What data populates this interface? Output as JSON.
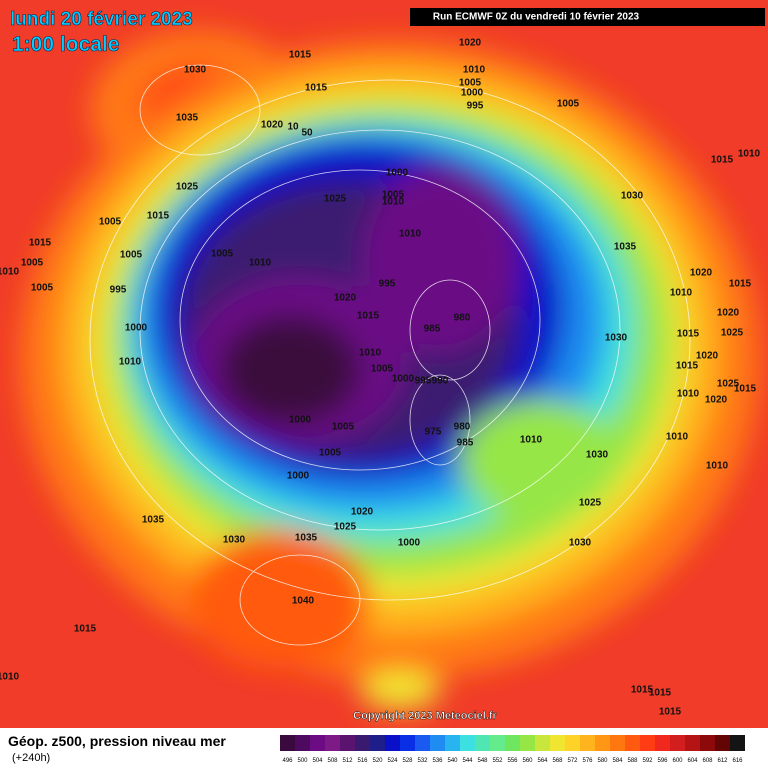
{
  "header": {
    "title": "lundi 20 février 2023",
    "subtitle": "1:00 locale",
    "run": "Run ECMWF 0Z du vendredi 10 février 2023"
  },
  "copyright": "Copyright 2023 Meteociel.fr",
  "footer": {
    "title": "Géop. z500, pression niveau mer",
    "lead": "(+240h)"
  },
  "isobar_labels": [
    "1030",
    "1035",
    "1025",
    "1020",
    "10",
    "50",
    "1015",
    "1015",
    "1020",
    "1010",
    "1005",
    "1000",
    "995",
    "1005",
    "1015",
    "1010",
    "1000",
    "1005",
    "1010",
    "1025",
    "1030",
    "1015",
    "1005",
    "1015",
    "1005",
    "1005",
    "1010",
    "1010",
    "1035",
    "1005",
    "1010",
    "1005",
    "995",
    "995",
    "1020",
    "1015",
    "985",
    "980",
    "1020",
    "1010",
    "1015",
    "1020",
    "1000",
    "1030",
    "1010",
    "1010",
    "1005",
    "1000",
    "995",
    "990",
    "1025",
    "1015",
    "1020",
    "1015",
    "1025",
    "1015",
    "1010",
    "1020",
    "1000",
    "1005",
    "975",
    "980",
    "985",
    "1010",
    "1010",
    "1030",
    "1005",
    "1010",
    "1000",
    "1025",
    "1020",
    "1035",
    "1025",
    "1030",
    "1035",
    "1000",
    "1030",
    "1040",
    "1015",
    "1010",
    "1015",
    "1015",
    "1015"
  ],
  "legend": {
    "levels": [
      "496",
      "500",
      "504",
      "508",
      "512",
      "516",
      "520",
      "524",
      "528",
      "532",
      "536",
      "540",
      "544",
      "548",
      "552",
      "556",
      "560",
      "564",
      "568",
      "572",
      "576",
      "580",
      "584",
      "588",
      "592",
      "596",
      "600",
      "604",
      "608",
      "612",
      "616"
    ],
    "colors": [
      "#3a0a3e",
      "#4e0a5e",
      "#6b0c85",
      "#7e1a86",
      "#5a1470",
      "#3a1a70",
      "#1e1e8a",
      "#0a10c8",
      "#0a2ee6",
      "#1a5af0",
      "#1e8cf0",
      "#28b4f0",
      "#3ce0e0",
      "#50e6b4",
      "#64ec8c",
      "#6ee660",
      "#96e646",
      "#c8e63c",
      "#f0e632",
      "#ffd228",
      "#ffb41e",
      "#ff9614",
      "#ff780f",
      "#ff5a0f",
      "#ff3c14",
      "#f0281e",
      "#d21e1e",
      "#b41414",
      "#8c0a0a",
      "#640505",
      "#141414"
    ]
  }
}
